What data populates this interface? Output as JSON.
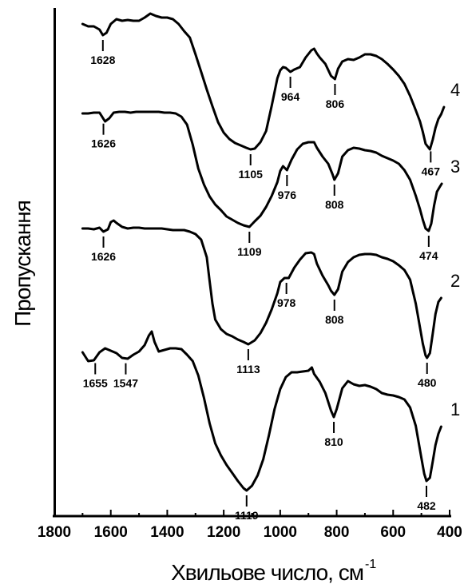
{
  "chart_data": {
    "type": "line",
    "xlabel": "Хвильове число, см",
    "xlabel_superscript": "-1",
    "ylabel": "Пропускання",
    "xlim": [
      1800,
      400
    ],
    "x_ticks": [
      "1800",
      "1600",
      "1400",
      "1200",
      "1000",
      "800",
      "600",
      "400"
    ],
    "grid": false,
    "legend": "none",
    "series": [
      {
        "label": "1",
        "points": [
          [
            1700,
            441
          ],
          [
            1680,
            452
          ],
          [
            1660,
            451
          ],
          [
            1640,
            441
          ],
          [
            1620,
            436
          ],
          [
            1600,
            439
          ],
          [
            1580,
            442
          ],
          [
            1560,
            448
          ],
          [
            1540,
            449
          ],
          [
            1520,
            444
          ],
          [
            1500,
            440
          ],
          [
            1480,
            432
          ],
          [
            1465,
            420
          ],
          [
            1455,
            415
          ],
          [
            1445,
            428
          ],
          [
            1430,
            440
          ],
          [
            1410,
            438
          ],
          [
            1390,
            436
          ],
          [
            1370,
            436
          ],
          [
            1350,
            437
          ],
          [
            1330,
            444
          ],
          [
            1310,
            452
          ],
          [
            1290,
            470
          ],
          [
            1270,
            498
          ],
          [
            1250,
            530
          ],
          [
            1230,
            555
          ],
          [
            1210,
            570
          ],
          [
            1190,
            582
          ],
          [
            1170,
            592
          ],
          [
            1150,
            602
          ],
          [
            1130,
            611
          ],
          [
            1119,
            614
          ],
          [
            1100,
            608
          ],
          [
            1080,
            595
          ],
          [
            1060,
            575
          ],
          [
            1040,
            545
          ],
          [
            1020,
            512
          ],
          [
            1000,
            487
          ],
          [
            980,
            472
          ],
          [
            960,
            466
          ],
          [
            940,
            466
          ],
          [
            920,
            465
          ],
          [
            900,
            464
          ],
          [
            888,
            460
          ],
          [
            880,
            468
          ],
          [
            860,
            478
          ],
          [
            840,
            492
          ],
          [
            820,
            514
          ],
          [
            810,
            522
          ],
          [
            800,
            512
          ],
          [
            780,
            486
          ],
          [
            760,
            477
          ],
          [
            740,
            481
          ],
          [
            720,
            483
          ],
          [
            700,
            482
          ],
          [
            680,
            484
          ],
          [
            660,
            487
          ],
          [
            640,
            492
          ],
          [
            620,
            494
          ],
          [
            600,
            495
          ],
          [
            580,
            497
          ],
          [
            560,
            500
          ],
          [
            540,
            510
          ],
          [
            520,
            533
          ],
          [
            500,
            573
          ],
          [
            490,
            593
          ],
          [
            482,
            602
          ],
          [
            470,
            598
          ],
          [
            460,
            578
          ],
          [
            450,
            557
          ],
          [
            440,
            543
          ],
          [
            430,
            534
          ]
        ],
        "peaks": [
          {
            "x": 1655,
            "label": "1655"
          },
          {
            "x": 1547,
            "label": "1547"
          },
          {
            "x": 1119,
            "label": "1119"
          },
          {
            "x": 810,
            "label": "810"
          },
          {
            "x": 482,
            "label": "482"
          }
        ]
      },
      {
        "label": "2",
        "points": [
          [
            1700,
            286
          ],
          [
            1680,
            286
          ],
          [
            1660,
            287
          ],
          [
            1640,
            285
          ],
          [
            1626,
            290
          ],
          [
            1610,
            287
          ],
          [
            1600,
            278
          ],
          [
            1590,
            276
          ],
          [
            1580,
            279
          ],
          [
            1560,
            284
          ],
          [
            1540,
            286
          ],
          [
            1520,
            285
          ],
          [
            1500,
            285
          ],
          [
            1480,
            286
          ],
          [
            1460,
            286
          ],
          [
            1440,
            286
          ],
          [
            1420,
            286
          ],
          [
            1400,
            287
          ],
          [
            1380,
            288
          ],
          [
            1360,
            288
          ],
          [
            1340,
            288
          ],
          [
            1320,
            290
          ],
          [
            1300,
            293
          ],
          [
            1280,
            300
          ],
          [
            1260,
            322
          ],
          [
            1250,
            352
          ],
          [
            1240,
            380
          ],
          [
            1230,
            400
          ],
          [
            1210,
            412
          ],
          [
            1190,
            418
          ],
          [
            1170,
            421
          ],
          [
            1150,
            425
          ],
          [
            1130,
            428
          ],
          [
            1113,
            431
          ],
          [
            1090,
            426
          ],
          [
            1070,
            417
          ],
          [
            1050,
            404
          ],
          [
            1030,
            387
          ],
          [
            1010,
            367
          ],
          [
            1000,
            353
          ],
          [
            985,
            348
          ],
          [
            970,
            348
          ],
          [
            950,
            335
          ],
          [
            930,
            325
          ],
          [
            910,
            317
          ],
          [
            890,
            316
          ],
          [
            880,
            318
          ],
          [
            870,
            330
          ],
          [
            850,
            345
          ],
          [
            830,
            357
          ],
          [
            820,
            364
          ],
          [
            808,
            369
          ],
          [
            795,
            362
          ],
          [
            780,
            340
          ],
          [
            760,
            328
          ],
          [
            740,
            322
          ],
          [
            720,
            319
          ],
          [
            700,
            318
          ],
          [
            680,
            318
          ],
          [
            660,
            319
          ],
          [
            640,
            322
          ],
          [
            620,
            324
          ],
          [
            600,
            327
          ],
          [
            580,
            332
          ],
          [
            560,
            338
          ],
          [
            540,
            350
          ],
          [
            520,
            380
          ],
          [
            505,
            410
          ],
          [
            495,
            430
          ],
          [
            485,
            445
          ],
          [
            480,
            448
          ],
          [
            470,
            442
          ],
          [
            460,
            418
          ],
          [
            450,
            393
          ],
          [
            440,
            378
          ],
          [
            430,
            373
          ]
        ],
        "peaks": [
          {
            "x": 1626,
            "label": "1626"
          },
          {
            "x": 1113,
            "label": "1113"
          },
          {
            "x": 978,
            "label": "978"
          },
          {
            "x": 808,
            "label": "808"
          },
          {
            "x": 480,
            "label": "480"
          }
        ]
      },
      {
        "label": "3",
        "points": [
          [
            1700,
            142
          ],
          [
            1680,
            142
          ],
          [
            1660,
            141
          ],
          [
            1640,
            141
          ],
          [
            1620,
            152
          ],
          [
            1605,
            148
          ],
          [
            1590,
            141
          ],
          [
            1570,
            140
          ],
          [
            1550,
            140
          ],
          [
            1530,
            141
          ],
          [
            1510,
            140
          ],
          [
            1490,
            140
          ],
          [
            1470,
            140
          ],
          [
            1450,
            140
          ],
          [
            1430,
            140
          ],
          [
            1410,
            141
          ],
          [
            1390,
            141
          ],
          [
            1370,
            142
          ],
          [
            1350,
            146
          ],
          [
            1330,
            156
          ],
          [
            1310,
            181
          ],
          [
            1290,
            211
          ],
          [
            1270,
            231
          ],
          [
            1250,
            246
          ],
          [
            1230,
            256
          ],
          [
            1210,
            263
          ],
          [
            1190,
            271
          ],
          [
            1170,
            275
          ],
          [
            1150,
            279
          ],
          [
            1130,
            282
          ],
          [
            1109,
            284
          ],
          [
            1090,
            277
          ],
          [
            1070,
            270
          ],
          [
            1050,
            259
          ],
          [
            1030,
            245
          ],
          [
            1010,
            228
          ],
          [
            1000,
            214
          ],
          [
            990,
            208
          ],
          [
            976,
            213
          ],
          [
            960,
            200
          ],
          [
            940,
            187
          ],
          [
            920,
            180
          ],
          [
            900,
            178
          ],
          [
            880,
            178
          ],
          [
            870,
            185
          ],
          [
            850,
            196
          ],
          [
            830,
            205
          ],
          [
            815,
            218
          ],
          [
            808,
            225
          ],
          [
            795,
            217
          ],
          [
            780,
            196
          ],
          [
            760,
            188
          ],
          [
            740,
            185
          ],
          [
            720,
            186
          ],
          [
            700,
            188
          ],
          [
            680,
            189
          ],
          [
            660,
            191
          ],
          [
            640,
            195
          ],
          [
            620,
            198
          ],
          [
            600,
            201
          ],
          [
            580,
            205
          ],
          [
            560,
            213
          ],
          [
            540,
            225
          ],
          [
            520,
            245
          ],
          [
            505,
            262
          ],
          [
            495,
            275
          ],
          [
            485,
            286
          ],
          [
            474,
            289
          ],
          [
            465,
            280
          ],
          [
            455,
            257
          ],
          [
            445,
            240
          ],
          [
            435,
            234
          ],
          [
            428,
            230
          ]
        ],
        "peaks": [
          {
            "x": 1626,
            "label": "1626"
          },
          {
            "x": 1109,
            "label": "1109"
          },
          {
            "x": 976,
            "label": "976"
          },
          {
            "x": 808,
            "label": "808"
          },
          {
            "x": 474,
            "label": "474"
          }
        ]
      },
      {
        "label": "4",
        "points": [
          [
            1700,
            30
          ],
          [
            1680,
            33
          ],
          [
            1660,
            33
          ],
          [
            1640,
            37
          ],
          [
            1628,
            44
          ],
          [
            1615,
            41
          ],
          [
            1600,
            30
          ],
          [
            1580,
            24
          ],
          [
            1560,
            26
          ],
          [
            1540,
            25
          ],
          [
            1520,
            26
          ],
          [
            1500,
            26
          ],
          [
            1480,
            22
          ],
          [
            1460,
            17
          ],
          [
            1440,
            20
          ],
          [
            1420,
            22
          ],
          [
            1400,
            22
          ],
          [
            1380,
            24
          ],
          [
            1360,
            30
          ],
          [
            1340,
            39
          ],
          [
            1320,
            47
          ],
          [
            1300,
            68
          ],
          [
            1280,
            90
          ],
          [
            1260,
            112
          ],
          [
            1240,
            133
          ],
          [
            1220,
            153
          ],
          [
            1200,
            166
          ],
          [
            1180,
            174
          ],
          [
            1160,
            179
          ],
          [
            1140,
            182
          ],
          [
            1120,
            185
          ],
          [
            1105,
            187
          ],
          [
            1090,
            186
          ],
          [
            1070,
            178
          ],
          [
            1050,
            164
          ],
          [
            1030,
            132
          ],
          [
            1010,
            98
          ],
          [
            1000,
            88
          ],
          [
            990,
            84
          ],
          [
            980,
            85
          ],
          [
            964,
            90
          ],
          [
            950,
            87
          ],
          [
            930,
            84
          ],
          [
            910,
            72
          ],
          [
            890,
            63
          ],
          [
            880,
            61
          ],
          [
            870,
            67
          ],
          [
            860,
            72
          ],
          [
            840,
            80
          ],
          [
            820,
            95
          ],
          [
            806,
            99
          ],
          [
            795,
            86
          ],
          [
            780,
            77
          ],
          [
            760,
            74
          ],
          [
            740,
            75
          ],
          [
            720,
            72
          ],
          [
            700,
            68
          ],
          [
            680,
            68
          ],
          [
            660,
            70
          ],
          [
            640,
            74
          ],
          [
            620,
            80
          ],
          [
            600,
            87
          ],
          [
            580,
            95
          ],
          [
            560,
            105
          ],
          [
            540,
            120
          ],
          [
            520,
            138
          ],
          [
            505,
            152
          ],
          [
            495,
            165
          ],
          [
            485,
            180
          ],
          [
            470,
            187
          ],
          [
            460,
            175
          ],
          [
            450,
            160
          ],
          [
            440,
            149
          ],
          [
            430,
            143
          ],
          [
            420,
            134
          ]
        ],
        "peaks": [
          {
            "x": 1628,
            "label": "1628"
          },
          {
            "x": 1105,
            "label": "1105"
          },
          {
            "x": 964,
            "label": "964"
          },
          {
            "x": 806,
            "label": "806"
          },
          {
            "x": 467,
            "label": "467"
          }
        ]
      }
    ]
  }
}
